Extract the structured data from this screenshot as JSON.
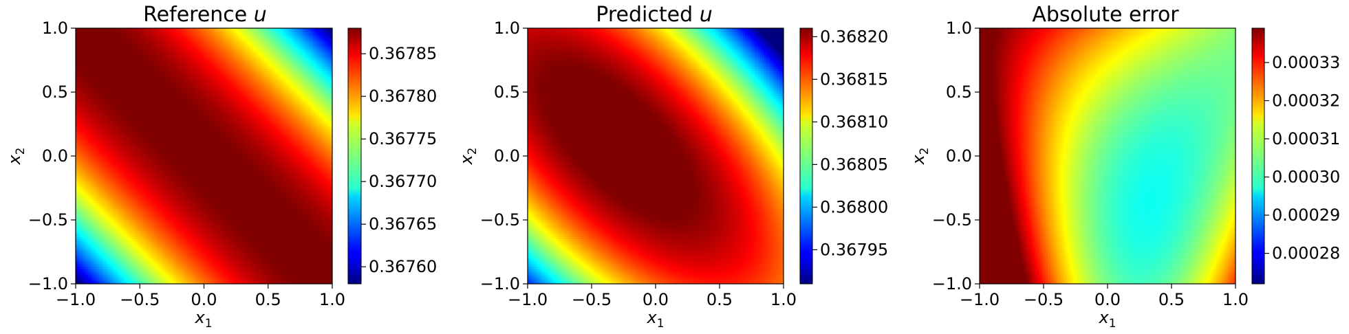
{
  "chart_data": [
    {
      "type": "heatmap",
      "title": "Reference",
      "title_var": "u",
      "xlabel": "x",
      "xlabel_sub": "1",
      "ylabel": "x",
      "ylabel_sub": "2",
      "xlim": [
        -1.0,
        1.0
      ],
      "ylim": [
        -1.0,
        1.0
      ],
      "xticks": [
        "−1.0",
        "−0.5",
        "0.0",
        "0.5",
        "1.0"
      ],
      "yticks": [
        "−1.0",
        "−0.5",
        "0.0",
        "0.5",
        "1.0"
      ],
      "colormap": "jet",
      "colorbar": {
        "vmin": 0.36758,
        "vmax": 0.36788,
        "ticks": [
          0.3676,
          0.36765,
          0.3677,
          0.36775,
          0.3678,
          0.36785
        ],
        "tick_labels": [
          "0.36760",
          "0.36765",
          "0.36770",
          "0.36775",
          "0.36780",
          "0.36785"
        ]
      },
      "pattern": "diagonal band: maximum along line x1 + x2 ≈ 0, minimum at corners (−1,−1) and (1,1)",
      "grid": false
    },
    {
      "type": "heatmap",
      "title": "Predicted",
      "title_var": "u",
      "xlabel": "x",
      "xlabel_sub": "1",
      "ylabel": "x",
      "ylabel_sub": "2",
      "xlim": [
        -1.0,
        1.0
      ],
      "ylim": [
        -1.0,
        1.0
      ],
      "xticks": [
        "−1.0",
        "−0.5",
        "0.0",
        "0.5",
        "1.0"
      ],
      "yticks": [
        "−1.0",
        "−0.5",
        "0.0",
        "0.5",
        "1.0"
      ],
      "colormap": "jet",
      "colorbar": {
        "vmin": 0.36791,
        "vmax": 0.36821,
        "ticks": [
          0.36795,
          0.368,
          0.36805,
          0.3681,
          0.36815,
          0.3682
        ],
        "tick_labels": [
          "0.36795",
          "0.36800",
          "0.36805",
          "0.36810",
          "0.36815",
          "0.36820"
        ]
      },
      "pattern": "diagonal band shifted toward upper-left: maximum near (−0.5, 0.5), minimum at corners (−1,−1) and (1,1)",
      "grid": false
    },
    {
      "type": "heatmap",
      "title": "Absolute error",
      "xlabel": "x",
      "xlabel_sub": "1",
      "ylabel": "x",
      "ylabel_sub": "2",
      "xlim": [
        -1.0,
        1.0
      ],
      "ylim": [
        -1.0,
        1.0
      ],
      "xticks": [
        "−1.0",
        "−0.5",
        "0.0",
        "0.5",
        "1.0"
      ],
      "yticks": [
        "−1.0",
        "−0.5",
        "0.0",
        "0.5",
        "1.0"
      ],
      "colormap": "jet",
      "colorbar": {
        "vmin": 0.000272,
        "vmax": 0.000339,
        "ticks": [
          0.00028,
          0.00029,
          0.0003,
          0.00031,
          0.00032,
          0.00033
        ],
        "tick_labels": [
          "0.00028",
          "0.00029",
          "0.00030",
          "0.00031",
          "0.00032",
          "0.00033"
        ]
      },
      "pattern": "maximum at left edge around x1 = −1, x2 ≈ 0; minimum near bottom around (0.5, −1); saddle near center",
      "grid": false
    }
  ]
}
